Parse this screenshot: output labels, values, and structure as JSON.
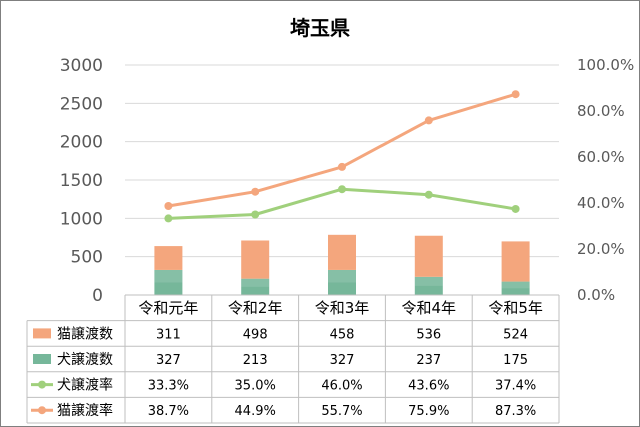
{
  "chart_data": {
    "type": "bar",
    "title": "埼玉県",
    "categories": [
      "令和元年",
      "令和2年",
      "令和3年",
      "令和4年",
      "令和5年"
    ],
    "series": [
      {
        "name": "猫譲渡数",
        "kind": "bar",
        "stack": "a",
        "axis": "left",
        "color": "#f4a67d",
        "values": [
          311,
          498,
          458,
          536,
          524
        ],
        "labels": [
          "311",
          "498",
          "458",
          "536",
          "524"
        ]
      },
      {
        "name": "犬譲渡数",
        "kind": "bar",
        "stack": "a",
        "axis": "left",
        "color": "#76b79a",
        "values": [
          327,
          213,
          327,
          237,
          175
        ],
        "labels": [
          "327",
          "213",
          "327",
          "237",
          "175"
        ]
      },
      {
        "name": "犬譲渡率",
        "kind": "line",
        "axis": "right",
        "color": "#a0d07c",
        "values": [
          33.3,
          35.0,
          46.0,
          43.6,
          37.4
        ],
        "labels": [
          "33.3%",
          "35.0%",
          "46.0%",
          "43.6%",
          "37.4%"
        ]
      },
      {
        "name": "猫譲渡率",
        "kind": "line",
        "axis": "right",
        "color": "#f4a67d",
        "values": [
          38.7,
          44.9,
          55.7,
          75.9,
          87.3
        ],
        "labels": [
          "38.7%",
          "44.9%",
          "55.7%",
          "75.9%",
          "87.3%"
        ]
      }
    ],
    "ylim": [
      0,
      3000
    ],
    "y_ticks": [
      "0",
      "500",
      "1000",
      "1500",
      "2000",
      "2500",
      "3000"
    ],
    "y_tick_values": [
      0,
      500,
      1000,
      1500,
      2000,
      2500,
      3000
    ],
    "y2lim": [
      0,
      100
    ],
    "y2_ticks": [
      "0.0%",
      "20.0%",
      "40.0%",
      "60.0%",
      "80.0%",
      "100.0%"
    ],
    "y2_tick_values": [
      0,
      20,
      40,
      60,
      80,
      100
    ],
    "grid": true,
    "legend": "data-table"
  }
}
